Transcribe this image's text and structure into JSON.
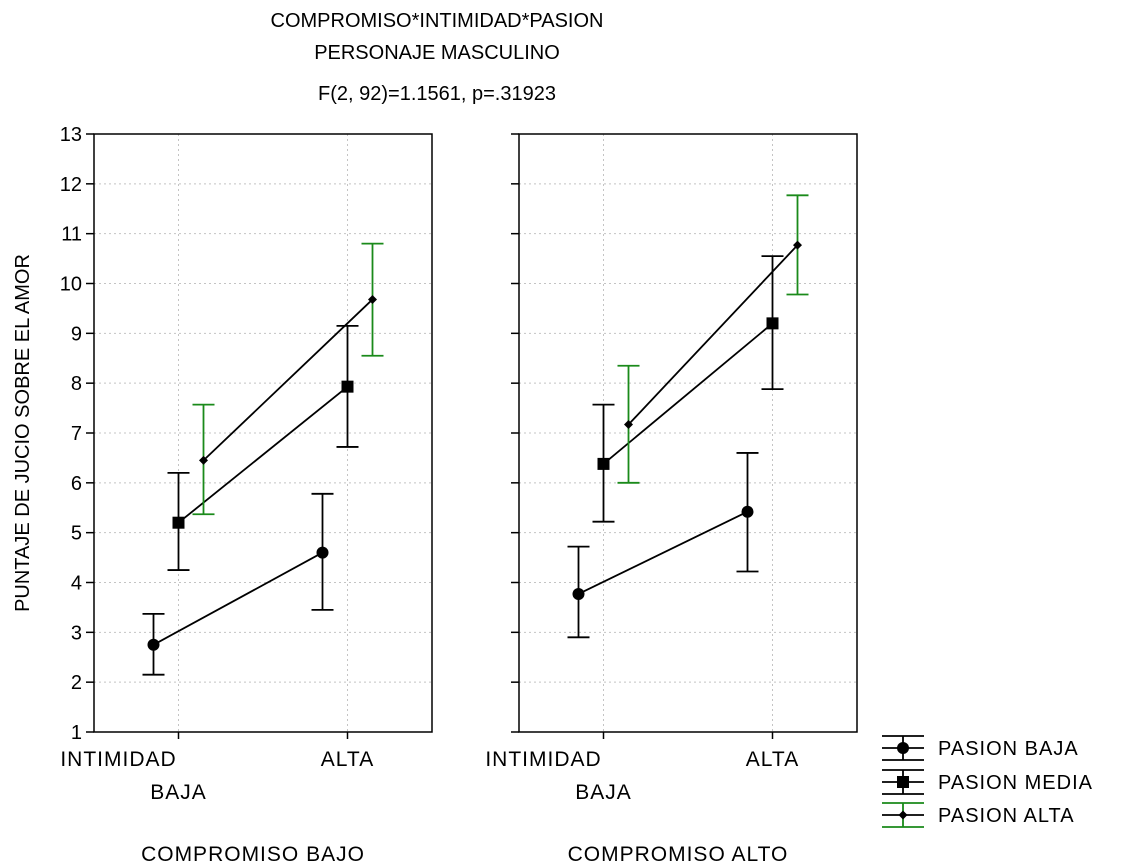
{
  "chart_data": {
    "type": "line",
    "title_lines": [
      "COMPROMISO*INTIMIDAD*PASION",
      "PERSONAJE MASCULINO",
      "F(2, 92)=1.1561, p=.31923"
    ],
    "ylabel": "PUNTAJE DE JUCIO SOBRE EL AMOR",
    "ylim": [
      1,
      13
    ],
    "yticks": [
      "1",
      "2",
      "3",
      "4",
      "5",
      "6",
      "7",
      "8",
      "9",
      "10",
      "11",
      "12",
      "13"
    ],
    "x_axis_name": "INTIMIDAD",
    "categories": [
      "BAJA",
      "ALTA"
    ],
    "grid": true,
    "legend_position": "bottom-right",
    "panels": [
      {
        "label": "COMPROMISO BAJO",
        "series": [
          {
            "name": "PASION BAJA",
            "values": [
              2.75,
              4.6
            ],
            "lower": [
              2.15,
              3.45
            ],
            "upper": [
              3.37,
              5.78
            ]
          },
          {
            "name": "PASION MEDIA",
            "values": [
              5.2,
              7.93
            ],
            "lower": [
              4.25,
              6.72
            ],
            "upper": [
              6.2,
              9.15
            ]
          },
          {
            "name": "PASION ALTA",
            "values": [
              6.45,
              9.68
            ],
            "lower": [
              5.37,
              8.55
            ],
            "upper": [
              7.57,
              10.8
            ]
          }
        ]
      },
      {
        "label": "COMPROMISO ALTO",
        "series": [
          {
            "name": "PASION BAJA",
            "values": [
              3.77,
              5.42
            ],
            "lower": [
              2.9,
              4.22
            ],
            "upper": [
              4.72,
              6.6
            ]
          },
          {
            "name": "PASION MEDIA",
            "values": [
              6.38,
              9.2
            ],
            "lower": [
              5.22,
              7.88
            ],
            "upper": [
              7.57,
              10.55
            ]
          },
          {
            "name": "PASION ALTA",
            "values": [
              7.17,
              10.77
            ],
            "lower": [
              6.0,
              9.78
            ],
            "upper": [
              8.35,
              11.77
            ]
          }
        ]
      }
    ],
    "series_styles": [
      {
        "name": "PASION BAJA",
        "marker": "circle",
        "errorbar_color": "#000000"
      },
      {
        "name": "PASION MEDIA",
        "marker": "square",
        "errorbar_color": "#000000"
      },
      {
        "name": "PASION ALTA",
        "marker": "diamond",
        "errorbar_color": "#1a8a1a"
      }
    ],
    "line_color": "#000000"
  }
}
